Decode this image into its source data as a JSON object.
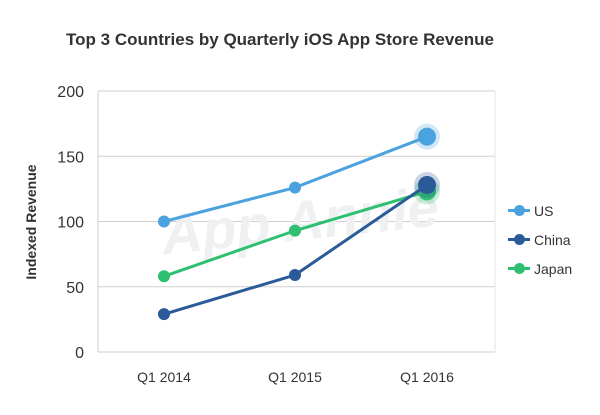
{
  "chart_data": {
    "type": "line",
    "title": "Top 3 Countries by Quarterly iOS App Store Revenue",
    "xlabel": "",
    "ylabel": "Indexed Revenue",
    "categories": [
      "Q1 2014",
      "Q1 2015",
      "Q1 2016"
    ],
    "yticks": [
      "0",
      "50",
      "100",
      "150",
      "200"
    ],
    "ylim": [
      0,
      200
    ],
    "grid": true,
    "legend_position": "right",
    "watermark": "App Annie",
    "series": [
      {
        "name": "US",
        "color": "#4aa3df",
        "values": [
          100,
          126,
          165
        ]
      },
      {
        "name": "China",
        "color": "#2a5a98",
        "values": [
          29,
          59,
          128
        ]
      },
      {
        "name": "Japan",
        "color": "#2fbf71",
        "values": [
          58,
          93,
          123
        ]
      }
    ]
  }
}
